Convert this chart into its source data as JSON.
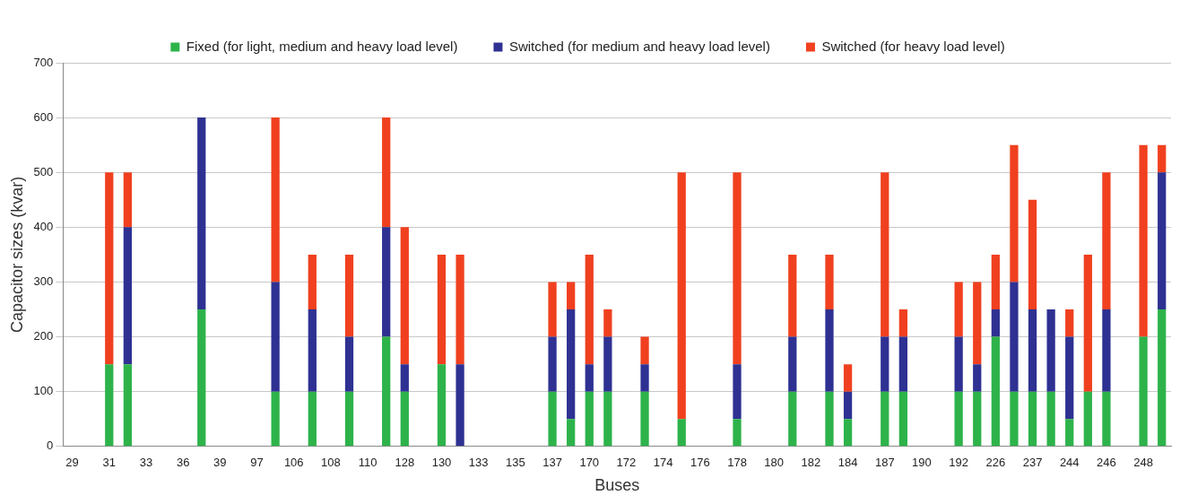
{
  "chart_data": {
    "type": "bar",
    "stacked": true,
    "xlabel": "Buses",
    "ylabel": "Capacitor sizes (kvar)",
    "categories": [
      "29",
      null,
      "31",
      null,
      "33",
      null,
      "36",
      null,
      "39",
      null,
      "97",
      null,
      "106",
      null,
      "108",
      null,
      "110",
      null,
      "128",
      null,
      "130",
      null,
      "133",
      null,
      "135",
      null,
      "137",
      null,
      "170",
      null,
      "172",
      null,
      "174",
      null,
      "176",
      null,
      "178",
      null,
      "180",
      null,
      "182",
      null,
      "184",
      null,
      "187",
      null,
      "190",
      null,
      "192",
      null,
      "226",
      null,
      "237",
      null,
      "244",
      null,
      "246",
      null,
      "248",
      null
    ],
    "series": [
      {
        "name": "Fixed (for light, medium and heavy load level)",
        "color": "#2db34a",
        "values": [
          null,
          null,
          150,
          150,
          null,
          null,
          null,
          250,
          null,
          null,
          null,
          100,
          null,
          100,
          null,
          100,
          null,
          200,
          100,
          null,
          150,
          0,
          null,
          null,
          null,
          null,
          100,
          50,
          100,
          100,
          null,
          100,
          null,
          50,
          null,
          null,
          50,
          null,
          null,
          100,
          null,
          100,
          50,
          null,
          100,
          100,
          null,
          null,
          100,
          100,
          200,
          100,
          100,
          100,
          50,
          100,
          100,
          null,
          200,
          250
        ]
      },
      {
        "name": "Switched (for medium and heavy load level)",
        "color": "#2e3192",
        "values": [
          null,
          null,
          0,
          250,
          null,
          null,
          null,
          350,
          null,
          null,
          null,
          200,
          null,
          150,
          null,
          100,
          null,
          200,
          50,
          null,
          0,
          150,
          null,
          null,
          null,
          null,
          100,
          200,
          50,
          100,
          null,
          50,
          null,
          0,
          null,
          null,
          100,
          null,
          null,
          100,
          null,
          150,
          50,
          null,
          100,
          100,
          null,
          null,
          100,
          50,
          50,
          200,
          150,
          150,
          150,
          0,
          150,
          null,
          0,
          250
        ]
      },
      {
        "name": "Switched (for heavy load level)",
        "color": "#f0401f",
        "values": [
          null,
          null,
          350,
          100,
          null,
          null,
          null,
          0,
          null,
          null,
          null,
          300,
          null,
          100,
          null,
          150,
          null,
          200,
          250,
          null,
          200,
          200,
          null,
          null,
          null,
          null,
          100,
          50,
          200,
          50,
          null,
          50,
          null,
          450,
          null,
          null,
          350,
          null,
          null,
          150,
          null,
          100,
          50,
          null,
          300,
          50,
          null,
          null,
          100,
          150,
          100,
          250,
          200,
          0,
          50,
          250,
          250,
          null,
          350,
          50
        ]
      }
    ],
    "ylim": [
      0,
      700
    ],
    "yticks": [
      0,
      100,
      200,
      300,
      400,
      500,
      600,
      700
    ],
    "grid": "y",
    "legend": "top"
  }
}
